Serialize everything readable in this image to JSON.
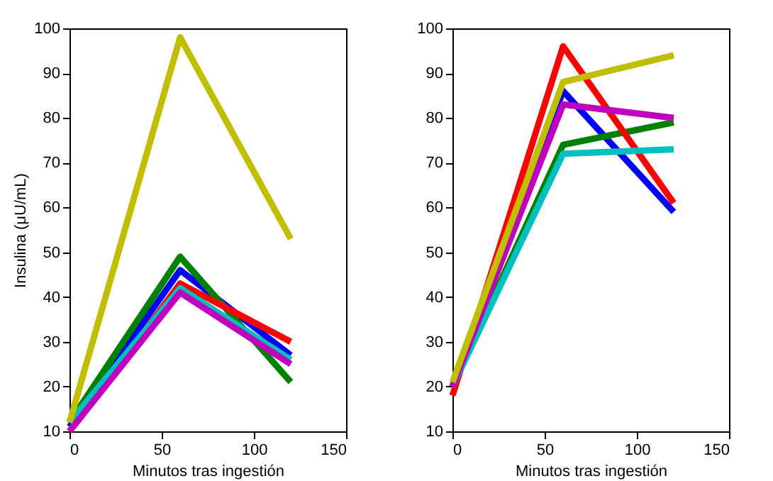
{
  "chart_data": [
    {
      "type": "line",
      "xlabel": "Minutos tras ingestión",
      "ylabel": "Insulina (μU/mL)",
      "x": [
        0,
        60,
        120
      ],
      "xlim": [
        0,
        150
      ],
      "xticks": [
        0,
        50,
        100,
        150
      ],
      "ylim": [
        10,
        100
      ],
      "yticks": [
        10,
        20,
        30,
        40,
        50,
        60,
        70,
        80,
        90,
        100
      ],
      "grid": false,
      "marker": "none",
      "line_style": "solid",
      "series": [
        {
          "color": "#0000ff",
          "values": [
            11,
            46,
            27
          ]
        },
        {
          "color": "#008000",
          "values": [
            12,
            49,
            21
          ]
        },
        {
          "color": "#ff0000",
          "values": [
            10,
            43,
            30
          ]
        },
        {
          "color": "#00bfbf",
          "values": [
            12,
            42,
            26
          ]
        },
        {
          "color": "#bf00bf",
          "values": [
            10,
            41,
            25
          ]
        },
        {
          "color": "#bfbf00",
          "values": [
            12,
            98,
            53
          ]
        }
      ]
    },
    {
      "type": "line",
      "xlabel": "Minutos tras ingestión",
      "x": [
        0,
        60,
        120
      ],
      "xlim": [
        0,
        150
      ],
      "xticks": [
        0,
        50,
        100,
        150
      ],
      "ylim": [
        10,
        100
      ],
      "yticks": [
        10,
        20,
        30,
        40,
        50,
        60,
        70,
        80,
        90,
        100
      ],
      "grid": false,
      "marker": "none",
      "line_style": "solid",
      "series": [
        {
          "color": "#0000ff",
          "values": [
            20,
            86,
            59
          ]
        },
        {
          "color": "#008000",
          "values": [
            20,
            74,
            79
          ]
        },
        {
          "color": "#ff0000",
          "values": [
            18,
            96,
            61
          ]
        },
        {
          "color": "#00bfbf",
          "values": [
            20,
            72,
            73
          ]
        },
        {
          "color": "#bf00bf",
          "values": [
            20,
            83,
            80
          ]
        },
        {
          "color": "#bfbf00",
          "values": [
            21,
            88,
            94
          ]
        }
      ]
    }
  ]
}
